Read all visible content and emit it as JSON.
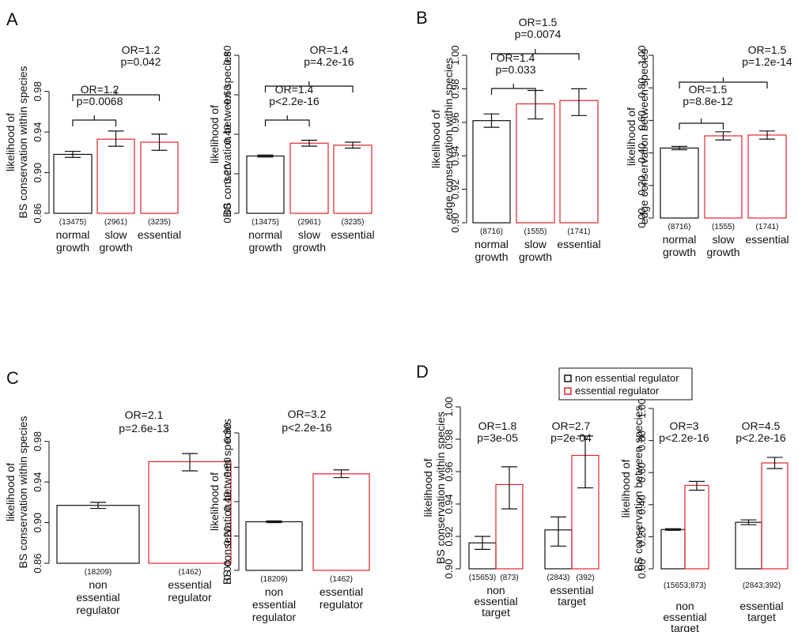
{
  "panel_letters": [
    "A",
    "B",
    "C",
    "D"
  ],
  "legend": [
    {
      "label": "non essential regulator",
      "color": "#111111"
    },
    {
      "label": "essential regulator",
      "color": "#e0262b"
    }
  ],
  "colors": {
    "normal": "#111111",
    "highlight": "#e0262b"
  },
  "chart_data": [
    {
      "id": "A1",
      "type": "bar",
      "ylabel": [
        "likelihood of",
        "BS conservation within species"
      ],
      "ylim": [
        0.86,
        1.0
      ],
      "yticks": [
        0.86,
        0.9,
        0.94,
        0.98
      ],
      "categories": [
        [
          "normal",
          "growth"
        ],
        [
          "slow",
          "growth"
        ],
        [
          "essential"
        ]
      ],
      "counts": [
        "(13475)",
        "(2961)",
        "(3235)"
      ],
      "values": [
        0.918,
        0.933,
        0.93
      ],
      "errors": [
        [
          0.915,
          0.921
        ],
        [
          0.926,
          0.941
        ],
        [
          0.922,
          0.938
        ]
      ],
      "colors": [
        "#111111",
        "#e0262b",
        "#e0262b"
      ],
      "annotations": [
        {
          "lines": [
            "OR=1.2",
            "p=0.0068"
          ],
          "from": 0,
          "to": 1
        },
        {
          "lines": [
            "OR=1.2",
            "p=0.042"
          ],
          "from": 0,
          "to": 2
        }
      ]
    },
    {
      "id": "A2",
      "type": "bar",
      "ylabel": [
        "likelihood of",
        "BS conservation between species"
      ],
      "ylim": [
        0,
        0.8
      ],
      "yticks": [
        0.0,
        0.2,
        0.4,
        0.6,
        0.8
      ],
      "categories": [
        [
          "normal",
          "growth"
        ],
        [
          "slow",
          "growth"
        ],
        [
          "essential"
        ]
      ],
      "counts": [
        "(13475)",
        "(2961)",
        "(3235)"
      ],
      "values": [
        0.29,
        0.355,
        0.345
      ],
      "errors": [
        [
          0.285,
          0.295
        ],
        [
          0.34,
          0.37
        ],
        [
          0.33,
          0.36
        ]
      ],
      "colors": [
        "#111111",
        "#e0262b",
        "#e0262b"
      ],
      "annotations": [
        {
          "lines": [
            "OR=1.4",
            "p<2.2e-16"
          ],
          "from": 0,
          "to": 1
        },
        {
          "lines": [
            "OR=1.4",
            "p=4.2e-16"
          ],
          "from": 0,
          "to": 2
        }
      ]
    },
    {
      "id": "B1",
      "type": "bar",
      "ylabel": [
        "likelihood of",
        "edge conservation within species"
      ],
      "ylim": [
        0.9,
        1.0
      ],
      "yticks": [
        0.9,
        0.92,
        0.94,
        0.96,
        0.98,
        1.0
      ],
      "categories": [
        [
          "normal",
          "growth"
        ],
        [
          "slow",
          "growth"
        ],
        [
          "essential"
        ]
      ],
      "counts": [
        "(8716)",
        "(1555)",
        "(1741)"
      ],
      "values": [
        0.961,
        0.971,
        0.973
      ],
      "errors": [
        [
          0.957,
          0.965
        ],
        [
          0.962,
          0.979
        ],
        [
          0.964,
          0.98
        ]
      ],
      "colors": [
        "#111111",
        "#e0262b",
        "#e0262b"
      ],
      "annotations": [
        {
          "lines": [
            "OR=1.4",
            "p=0.033"
          ],
          "from": 0,
          "to": 1
        },
        {
          "lines": [
            "OR=1.5",
            "p=0.0074"
          ],
          "from": 0,
          "to": 2
        }
      ]
    },
    {
      "id": "B2",
      "type": "bar",
      "ylabel": [
        "likelihood of",
        "edge conservation between species"
      ],
      "ylim": [
        0,
        1.0
      ],
      "yticks": [
        0.0,
        0.2,
        0.4,
        0.6,
        0.8,
        1.0
      ],
      "categories": [
        [
          "normal",
          "growth"
        ],
        [
          "slow",
          "growth"
        ],
        [
          "essential"
        ]
      ],
      "counts": [
        "(8716)",
        "(1555)",
        "(1741)"
      ],
      "values": [
        0.43,
        0.505,
        0.51
      ],
      "errors": [
        [
          0.42,
          0.44
        ],
        [
          0.48,
          0.53
        ],
        [
          0.485,
          0.535
        ]
      ],
      "colors": [
        "#111111",
        "#e0262b",
        "#e0262b"
      ],
      "annotations": [
        {
          "lines": [
            "OR=1.5",
            "p=8.8e-12"
          ],
          "from": 0,
          "to": 1
        },
        {
          "lines": [
            "OR=1.5",
            "p=1.2e-14"
          ],
          "from": 0,
          "to": 2
        }
      ]
    },
    {
      "id": "C1",
      "type": "bar",
      "ylabel": [
        "likelihood of",
        "BS conservation within species"
      ],
      "ylim": [
        0.86,
        1.0
      ],
      "yticks": [
        0.86,
        0.9,
        0.94,
        0.98
      ],
      "categories": [
        [
          "non",
          "essential",
          "regulator"
        ],
        [
          "essential",
          "regulator"
        ]
      ],
      "counts": [
        "(18209)",
        "(1462)"
      ],
      "values": [
        0.917,
        0.96
      ],
      "errors": [
        [
          0.914,
          0.92
        ],
        [
          0.951,
          0.968
        ]
      ],
      "colors": [
        "#111111",
        "#e0262b"
      ],
      "annotations": [
        {
          "lines": [
            "OR=2.1",
            "p=2.6e-13"
          ],
          "from": null,
          "to": null
        }
      ]
    },
    {
      "id": "C2",
      "type": "bar",
      "ylabel": [
        "likelihood of",
        "BS conservation between species"
      ],
      "ylim": [
        0,
        0.8
      ],
      "yticks": [
        0.0,
        0.2,
        0.4,
        0.6,
        0.8
      ],
      "categories": [
        [
          "non",
          "essential",
          "regulator"
        ],
        [
          "essential",
          "regulator"
        ]
      ],
      "counts": [
        "(18209)",
        "(1462)"
      ],
      "values": [
        0.283,
        0.562
      ],
      "errors": [
        [
          0.278,
          0.288
        ],
        [
          0.54,
          0.585
        ]
      ],
      "colors": [
        "#111111",
        "#e0262b"
      ],
      "annotations": [
        {
          "lines": [
            "OR=3.2",
            "p<2.2e-16"
          ],
          "from": null,
          "to": null
        }
      ]
    },
    {
      "id": "D1",
      "type": "bar",
      "ylabel": [
        "likelihood of",
        "BS conservation within species"
      ],
      "ylim": [
        0.9,
        1.0
      ],
      "yticks": [
        0.9,
        0.92,
        0.94,
        0.96,
        0.98,
        1.0
      ],
      "groups": [
        {
          "label": [
            "non",
            "essential",
            "target"
          ],
          "counts": [
            "(15653)",
            "(873)"
          ],
          "values": [
            0.916,
            0.952
          ],
          "errors": [
            [
              0.912,
              0.92
            ],
            [
              0.937,
              0.963
            ]
          ],
          "annotation": [
            "OR=1.8",
            "p=3e-05"
          ]
        },
        {
          "label": [
            "essential",
            "target"
          ],
          "counts": [
            "(2843)",
            "(392)"
          ],
          "values": [
            0.924,
            0.97
          ],
          "errors": [
            [
              0.914,
              0.932
            ],
            [
              0.95,
              0.982
            ]
          ],
          "annotation": [
            "OR=2.7",
            "p=2e-04"
          ]
        }
      ],
      "series": [
        {
          "name": "non essential regulator"
        },
        {
          "name": "essential regulator"
        }
      ]
    },
    {
      "id": "D2",
      "type": "bar",
      "ylabel": [
        "likelihood of",
        "BS conservation between species"
      ],
      "ylim": [
        0,
        1.0
      ],
      "yticks": [
        0.0,
        0.2,
        0.4,
        0.6,
        0.8,
        1.0
      ],
      "groups": [
        {
          "label": [
            "non",
            "essential",
            "target"
          ],
          "counts": [
            "(15653;873)"
          ],
          "values": [
            0.245,
            0.52
          ],
          "errors": [
            [
              0.24,
              0.25
            ],
            [
              0.49,
              0.545
            ]
          ],
          "annotation": [
            "OR=3",
            "p<2.2e-16"
          ]
        },
        {
          "label": [
            "essential",
            "target"
          ],
          "counts": [
            "(2843;392)"
          ],
          "values": [
            0.29,
            0.66
          ],
          "errors": [
            [
              0.275,
              0.305
            ],
            [
              0.625,
              0.695
            ]
          ],
          "annotation": [
            "OR=4.5",
            "p<2.2e-16"
          ]
        }
      ],
      "series": [
        {
          "name": "non essential regulator"
        },
        {
          "name": "essential regulator"
        }
      ]
    }
  ]
}
